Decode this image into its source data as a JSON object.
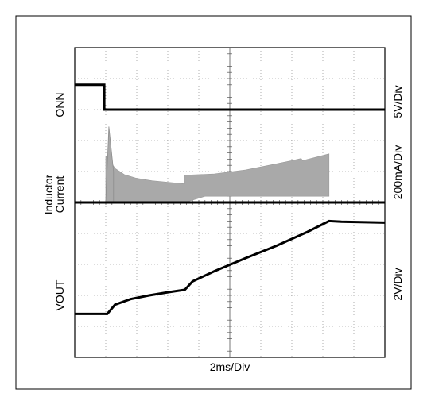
{
  "chart_data": {
    "type": "line",
    "title": "",
    "xlabel": "2ms/Div",
    "xlim": [
      0,
      10
    ],
    "ylim": [
      0,
      10
    ],
    "grid": true,
    "left_labels": [
      "ONN",
      "Inductor\nCurrent",
      "VOUT"
    ],
    "right_labels": [
      "5V/Div",
      "200mA/Div",
      "2V/Div"
    ],
    "series": [
      {
        "key": "onn",
        "x": [
          0,
          0.95,
          0.95,
          10
        ],
        "y": [
          8.8,
          8.8,
          8.0,
          8.0
        ]
      },
      {
        "key": "inductor_baseline",
        "x": [
          0,
          3.55,
          8.2,
          10
        ],
        "y": [
          5.0,
          5.0,
          5.0,
          5.0
        ]
      },
      {
        "key": "inductor_env_top",
        "x": [
          1.0,
          1.1,
          1.3,
          1.6,
          2.0,
          2.5,
          3.0,
          3.55,
          3.55,
          4.5,
          5.5,
          6.5,
          7.0,
          7.3,
          7.35,
          8.2
        ],
        "y": [
          6.5,
          6.4,
          6.1,
          5.9,
          5.78,
          5.7,
          5.65,
          5.6,
          5.88,
          5.92,
          6.05,
          6.25,
          6.35,
          6.42,
          6.35,
          6.57
        ]
      },
      {
        "key": "inductor_env_bottom",
        "x": [
          1.0,
          3.55,
          4.2,
          8.2
        ],
        "y": [
          5.0,
          5.0,
          5.2,
          5.2
        ]
      },
      {
        "key": "inductor_spike",
        "x": [
          1.0,
          1.1,
          1.25
        ],
        "y": [
          5.0,
          7.45,
          6.0
        ]
      },
      {
        "key": "vout",
        "x": [
          0,
          1.05,
          1.3,
          1.8,
          2.4,
          3.0,
          3.55,
          3.8,
          4.5,
          5.5,
          6.5,
          7.5,
          8.2,
          8.6,
          10
        ],
        "y": [
          1.4,
          1.4,
          1.7,
          1.88,
          2.0,
          2.1,
          2.18,
          2.45,
          2.78,
          3.2,
          3.6,
          4.05,
          4.4,
          4.38,
          4.35
        ]
      }
    ]
  }
}
